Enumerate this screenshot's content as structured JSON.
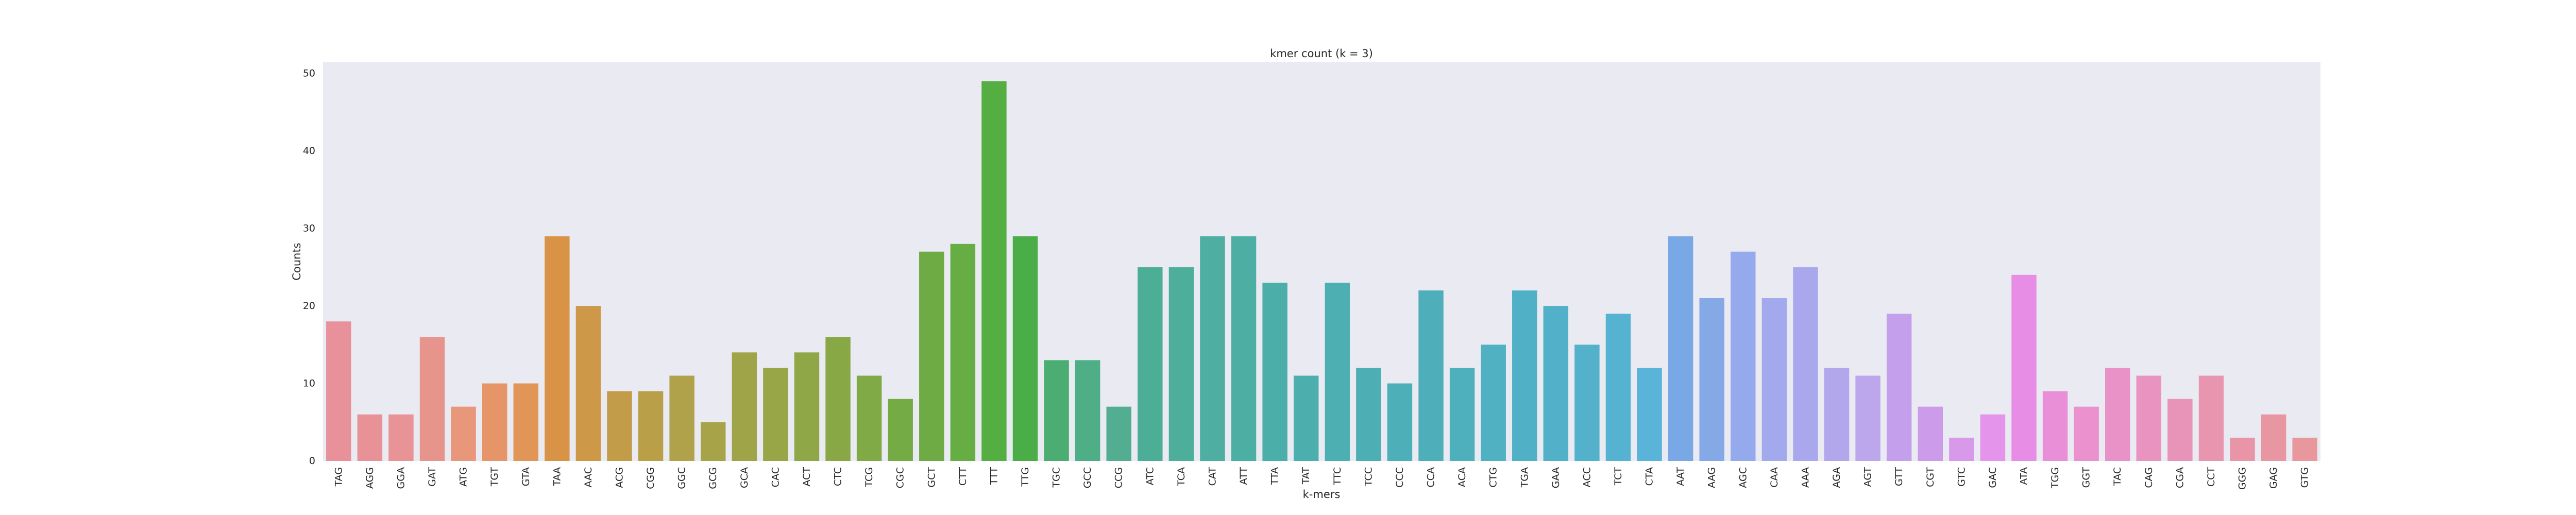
{
  "chart_data": {
    "type": "bar",
    "title": "kmer count (k = 3)",
    "xlabel": "k-mers",
    "ylabel": "Counts",
    "ylim": [
      0,
      51.5
    ],
    "yticks": [
      0,
      10,
      20,
      30,
      40,
      50
    ],
    "grid": false,
    "background": "#eaeaf2",
    "categories": [
      "TAG",
      "AGG",
      "GGA",
      "GAT",
      "ATG",
      "TGT",
      "GTA",
      "TAA",
      "AAC",
      "ACG",
      "CGG",
      "GGC",
      "GCG",
      "GCA",
      "CAC",
      "ACT",
      "CTC",
      "TCG",
      "CGC",
      "GCT",
      "CTT",
      "TTT",
      "TTG",
      "TGC",
      "GCC",
      "CCG",
      "ATC",
      "TCA",
      "CAT",
      "ATT",
      "TTA",
      "TAT",
      "TTC",
      "TCC",
      "CCC",
      "CCA",
      "ACA",
      "CTG",
      "TGA",
      "GAA",
      "ACC",
      "TCT",
      "CTA",
      "AAT",
      "AAG",
      "AGC",
      "CAA",
      "AAA",
      "AGA",
      "AGT",
      "GTT",
      "CGT",
      "GTC",
      "GAC",
      "ATA",
      "TGG",
      "GGT",
      "TAC",
      "CAG",
      "CGA",
      "CCT",
      "GGG",
      "GAG",
      "GTG"
    ],
    "values": [
      18,
      6,
      6,
      16,
      7,
      10,
      10,
      29,
      20,
      9,
      9,
      11,
      5,
      14,
      12,
      14,
      16,
      11,
      8,
      27,
      28,
      49,
      29,
      13,
      13,
      7,
      25,
      25,
      29,
      29,
      23,
      11,
      23,
      12,
      10,
      22,
      12,
      15,
      22,
      20,
      15,
      19,
      12,
      29,
      21,
      27,
      21,
      25,
      12,
      11,
      19,
      7,
      3,
      6,
      24,
      9,
      7,
      12,
      11,
      8,
      11,
      3,
      6,
      3
    ],
    "colors": [
      "#e8919a",
      "#e89298",
      "#e89395",
      "#e7958c",
      "#e8977b",
      "#e59567",
      "#e19556",
      "#d99347",
      "#cd9949",
      "#c29c48",
      "#b89f48",
      "#b0a24a",
      "#a6a349",
      "#9fa449",
      "#98a648",
      "#8fa747",
      "#88a846",
      "#7faa45",
      "#75ab44",
      "#6fab45",
      "#66ad43",
      "#55ae42",
      "#4bad47",
      "#4cad73",
      "#4eae86",
      "#52ad91",
      "#4dae97",
      "#4dae9c",
      "#4daea1",
      "#4dafa4",
      "#4caea9",
      "#4cafad",
      "#4dafb1",
      "#4daeb4",
      "#4dafb7",
      "#4eafba",
      "#4eb0bd",
      "#4fb1c1",
      "#50b1c6",
      "#52b1c9",
      "#53b1cc",
      "#55b2d1",
      "#5ab3d8",
      "#78a9e6",
      "#85a8e6",
      "#95aaec",
      "#a2a9ec",
      "#aaa8ec",
      "#b2a6ec",
      "#bca6ec",
      "#c4a0ec",
      "#cc9ceb",
      "#d899eb",
      "#e494ea",
      "#e88de6",
      "#e98fd8",
      "#ea91ce",
      "#e992c7",
      "#e993c0",
      "#e894b8",
      "#e895b0",
      "#e895a8",
      "#e896a2",
      "#e8979c"
    ]
  }
}
